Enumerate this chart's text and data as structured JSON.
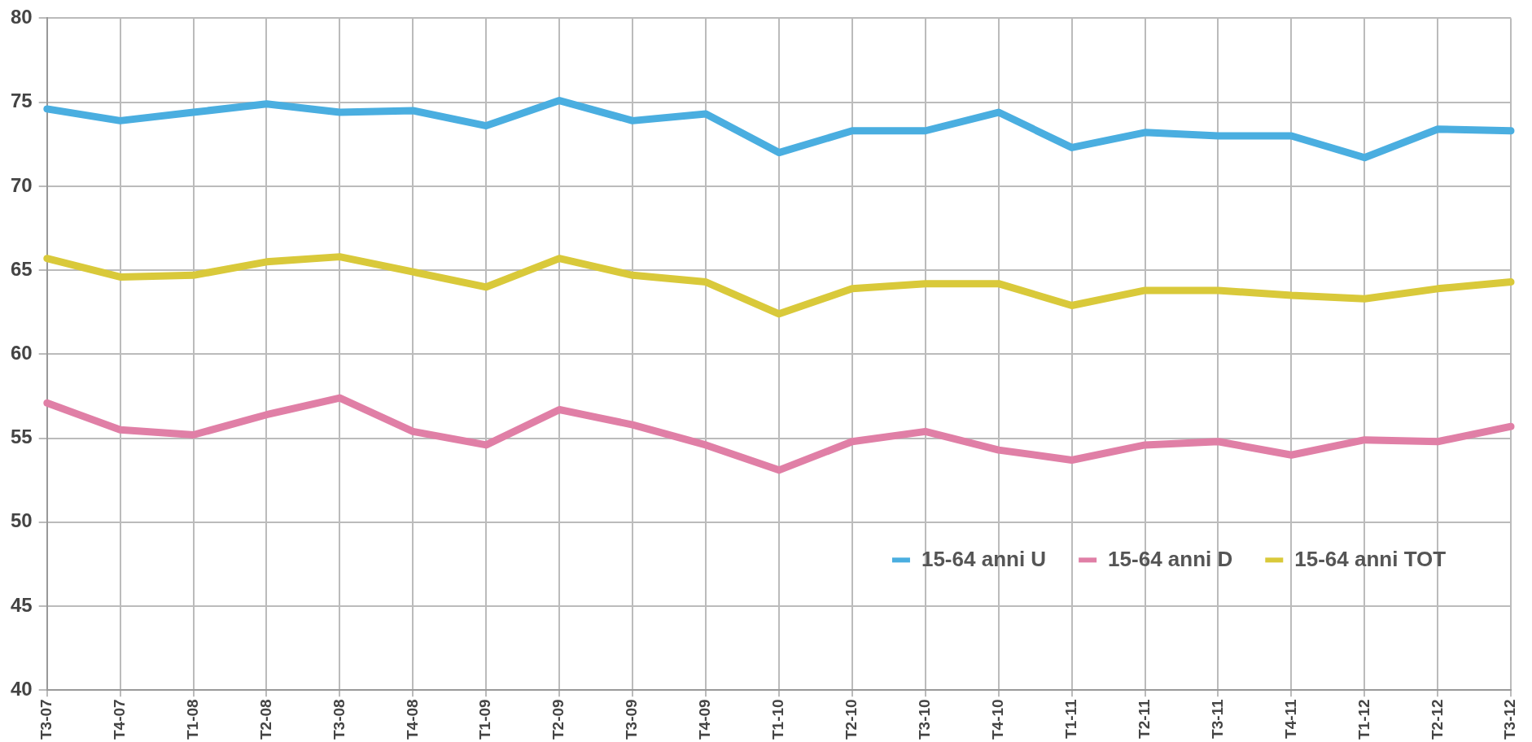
{
  "chart_data": {
    "type": "line",
    "categories": [
      "T3-07",
      "T4-07",
      "T1-08",
      "T2-08",
      "T3-08",
      "T4-08",
      "T1-09",
      "T2-09",
      "T3-09",
      "T4-09",
      "T1-10",
      "T2-10",
      "T3-10",
      "T4-10",
      "T1-11",
      "T2-11",
      "T3-11",
      "T4-11",
      "T1-12",
      "T2-12",
      "T3-12"
    ],
    "series": [
      {
        "name": "15-64 anni U",
        "color": "#4aaee0",
        "values": [
          74.6,
          73.9,
          74.4,
          74.9,
          74.4,
          74.5,
          73.6,
          75.1,
          73.9,
          74.3,
          72.0,
          73.3,
          73.3,
          74.4,
          72.3,
          73.2,
          73.0,
          73.0,
          71.7,
          73.4,
          73.3
        ]
      },
      {
        "name": "15-64 anni D",
        "color": "#e07fa6",
        "values": [
          57.1,
          55.5,
          55.2,
          56.4,
          57.4,
          55.4,
          54.6,
          56.7,
          55.8,
          54.6,
          53.1,
          54.8,
          55.4,
          54.3,
          53.7,
          54.6,
          54.8,
          54.0,
          54.9,
          54.8,
          55.7
        ]
      },
      {
        "name": "15-64 anni TOT",
        "color": "#d9c93a",
        "values": [
          65.7,
          64.6,
          64.7,
          65.5,
          65.8,
          64.9,
          64.0,
          65.7,
          64.7,
          64.3,
          62.4,
          63.9,
          64.2,
          64.2,
          62.9,
          63.8,
          63.8,
          63.5,
          63.3,
          63.9,
          64.3
        ]
      }
    ],
    "ylim": [
      40,
      80
    ],
    "yticks": [
      40,
      45,
      50,
      55,
      60,
      65,
      70,
      75,
      80
    ],
    "grid": true,
    "legend": "bottom right",
    "marker": "none",
    "line_style": "solid"
  }
}
